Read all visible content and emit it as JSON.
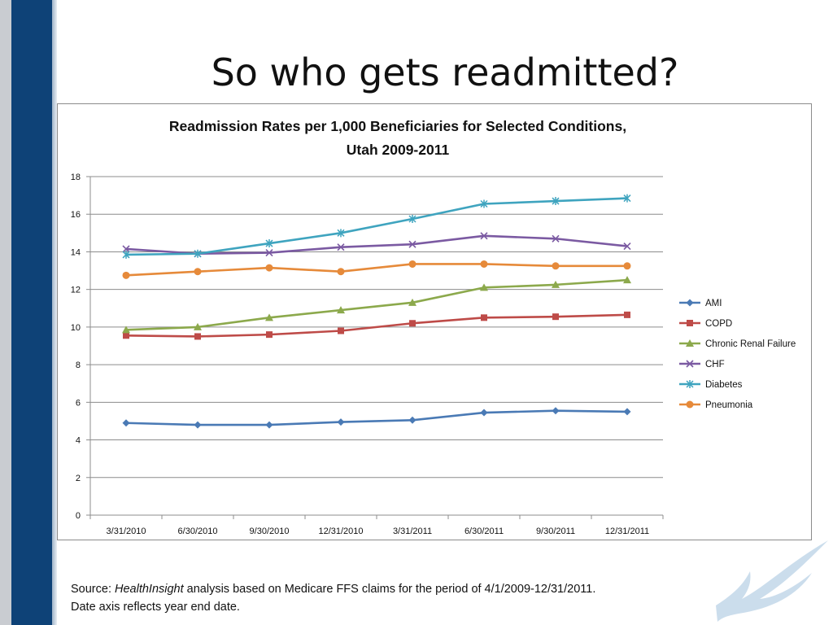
{
  "slide": {
    "title": "So who gets readmitted?",
    "source_prefix": "Source: ",
    "source_org": "HealthInsight",
    "source_rest": " analysis based on Medicare FFS claims for the period of 4/1/2009-12/31/2011.",
    "source_line2": "Date axis reflects year end date."
  },
  "chart_data": {
    "type": "line",
    "title_line1": "Readmission Rates per 1,000 Beneficiaries for Selected Conditions,",
    "title_line2": "Utah 2009-2011",
    "categories": [
      "3/31/2010",
      "6/30/2010",
      "9/30/2010",
      "12/31/2010",
      "3/31/2011",
      "6/30/2011",
      "9/30/2011",
      "12/31/2011"
    ],
    "ylim": [
      0,
      18
    ],
    "yticks": [
      0,
      2,
      4,
      6,
      8,
      10,
      12,
      14,
      16,
      18
    ],
    "grid": true,
    "legend_position": "right",
    "series": [
      {
        "name": "AMI",
        "color": "#4a7ab5",
        "marker": "diamond",
        "values": [
          4.9,
          4.8,
          4.8,
          4.95,
          5.05,
          5.45,
          5.55,
          5.5
        ]
      },
      {
        "name": "COPD",
        "color": "#be4b48",
        "marker": "square",
        "values": [
          9.55,
          9.5,
          9.6,
          9.8,
          10.2,
          10.5,
          10.55,
          10.65
        ]
      },
      {
        "name": "Chronic Renal Failure",
        "color": "#8ca94c",
        "marker": "triangle",
        "values": [
          9.85,
          10.0,
          10.5,
          10.9,
          11.3,
          12.1,
          12.25,
          12.5
        ]
      },
      {
        "name": "CHF",
        "color": "#7b5aa2",
        "marker": "x",
        "values": [
          14.15,
          13.9,
          13.95,
          14.25,
          14.4,
          14.85,
          14.7,
          14.3
        ]
      },
      {
        "name": "Diabetes",
        "color": "#3fa4bf",
        "marker": "asterisk",
        "values": [
          13.85,
          13.9,
          14.45,
          15.0,
          15.75,
          16.55,
          16.7,
          16.85
        ]
      },
      {
        "name": "Pneumonia",
        "color": "#e68a3a",
        "marker": "circle",
        "values": [
          12.75,
          12.95,
          13.15,
          12.95,
          13.35,
          13.35,
          13.25,
          13.25
        ]
      }
    ]
  }
}
